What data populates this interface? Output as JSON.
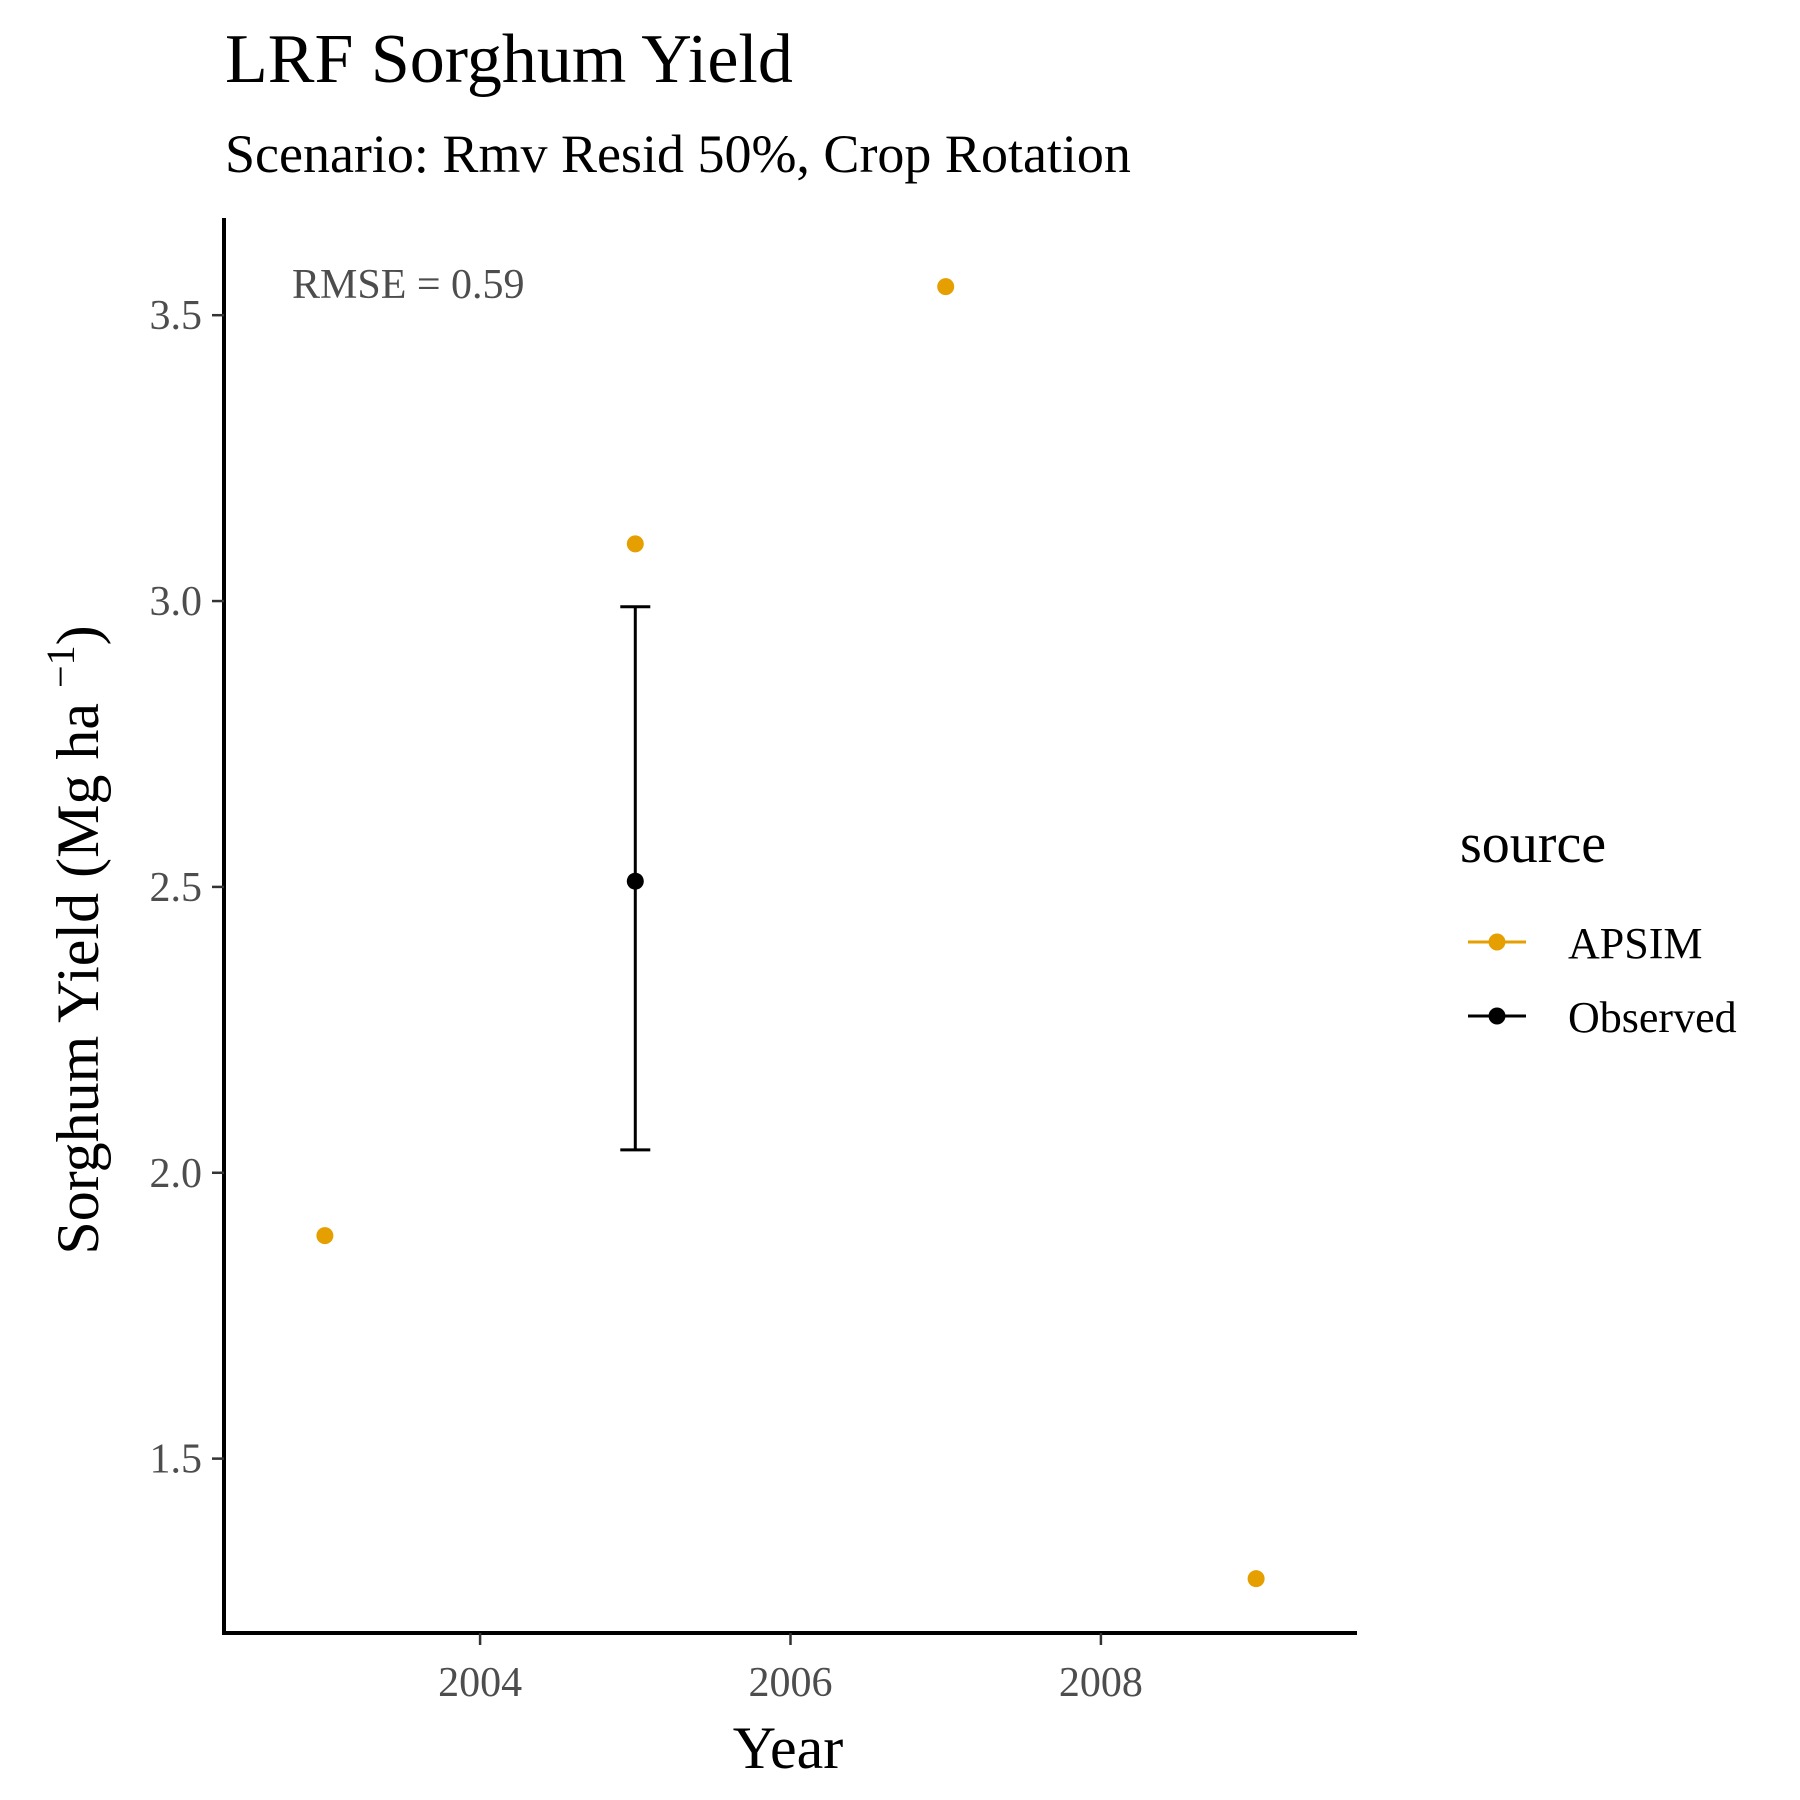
{
  "chart_data": {
    "type": "scatter",
    "title": "LRF Sorghum Yield",
    "subtitle": "Scenario: Rmv Resid 50%, Crop Rotation",
    "xlabel": "Year",
    "ylabel": "Sorghum Yield (Mg ha",
    "ylabel_superscript": "−1",
    "ylabel_close": ")",
    "xlim": [
      2002.35,
      2009.65
    ],
    "ylim": [
      1.195,
      3.67
    ],
    "x_ticks": [
      2004,
      2006,
      2008
    ],
    "x_tick_labels": [
      "2004",
      "2006",
      "2008"
    ],
    "y_ticks": [
      1.5,
      2.0,
      2.5,
      3.0,
      3.5
    ],
    "y_tick_labels": [
      "1.5",
      "2.0",
      "2.5",
      "3.0",
      "3.5"
    ],
    "grid": false,
    "annotation": "RMSE = 0.59",
    "legend": {
      "title": "source",
      "position": "right"
    },
    "series": [
      {
        "name": "APSIM",
        "color": "#E69F00",
        "points": [
          {
            "x": 2003,
            "y": 1.89
          },
          {
            "x": 2005,
            "y": 3.1
          },
          {
            "x": 2007,
            "y": 3.55
          },
          {
            "x": 2009,
            "y": 1.29
          }
        ]
      },
      {
        "name": "Observed",
        "color": "#000000",
        "points": [
          {
            "x": 2005,
            "y": 2.51,
            "ymin": 2.04,
            "ymax": 2.99
          }
        ]
      }
    ]
  }
}
